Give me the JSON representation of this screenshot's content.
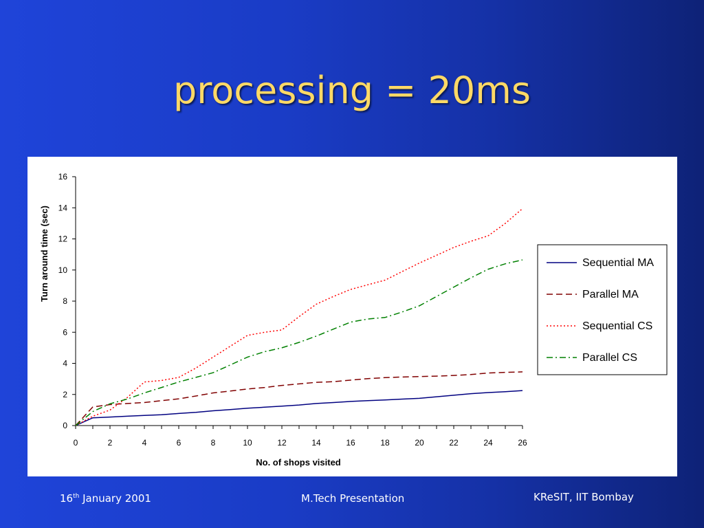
{
  "slide": {
    "title": "processing = 20ms",
    "footer": {
      "date_day": "16",
      "date_sup": "th",
      "date_rest": " January 2001",
      "center": "M.Tech Presentation",
      "right": "KReSIT, IIT Bombay"
    },
    "colors": {
      "background": "#1a3cc6",
      "title": "#ffd966",
      "chart_bg": "#ffffff"
    }
  },
  "chart_data": {
    "type": "line",
    "title": "",
    "xlabel": "No. of shops visited",
    "ylabel": "Turn around time (sec)",
    "xlim": [
      0,
      26
    ],
    "ylim": [
      0,
      16
    ],
    "xticks": [
      0,
      2,
      4,
      6,
      8,
      10,
      12,
      14,
      16,
      18,
      20,
      22,
      24,
      26
    ],
    "yticks": [
      0,
      2,
      4,
      6,
      8,
      10,
      12,
      14,
      16
    ],
    "grid": false,
    "legend_position": "right",
    "x": [
      0,
      1,
      2,
      3,
      4,
      5,
      6,
      7,
      8,
      9,
      10,
      11,
      12,
      13,
      14,
      15,
      16,
      17,
      18,
      19,
      20,
      21,
      22,
      23,
      24,
      25,
      26
    ],
    "series": [
      {
        "name": "Sequential MA",
        "color": "#000080",
        "dash": "solid",
        "values": [
          0,
          0.5,
          0.55,
          0.6,
          0.65,
          0.7,
          0.78,
          0.85,
          0.95,
          1.03,
          1.12,
          1.18,
          1.25,
          1.32,
          1.42,
          1.48,
          1.55,
          1.6,
          1.65,
          1.7,
          1.75,
          1.85,
          1.95,
          2.05,
          2.12,
          2.18,
          2.25
        ]
      },
      {
        "name": "Parallel MA",
        "color": "#800000",
        "dash": "dash",
        "values": [
          0,
          1.2,
          1.35,
          1.42,
          1.48,
          1.6,
          1.72,
          1.9,
          2.1,
          2.22,
          2.35,
          2.45,
          2.58,
          2.68,
          2.78,
          2.82,
          2.92,
          3.02,
          3.08,
          3.12,
          3.15,
          3.18,
          3.22,
          3.28,
          3.38,
          3.42,
          3.45
        ]
      },
      {
        "name": "Sequential CS",
        "color": "#ff0000",
        "dash": "dot",
        "values": [
          0,
          0.6,
          1.0,
          1.8,
          2.8,
          2.9,
          3.1,
          3.7,
          4.4,
          5.1,
          5.8,
          6.0,
          6.15,
          7.0,
          7.8,
          8.3,
          8.75,
          9.05,
          9.35,
          9.9,
          10.45,
          10.95,
          11.45,
          11.85,
          12.2,
          13.0,
          13.95
        ]
      },
      {
        "name": "Parallel CS",
        "color": "#008000",
        "dash": "dashdot",
        "values": [
          0,
          0.9,
          1.4,
          1.7,
          2.1,
          2.45,
          2.8,
          3.1,
          3.4,
          3.9,
          4.4,
          4.75,
          5.0,
          5.35,
          5.75,
          6.2,
          6.65,
          6.85,
          6.95,
          7.3,
          7.7,
          8.3,
          8.9,
          9.5,
          10.05,
          10.4,
          10.65
        ]
      }
    ]
  }
}
